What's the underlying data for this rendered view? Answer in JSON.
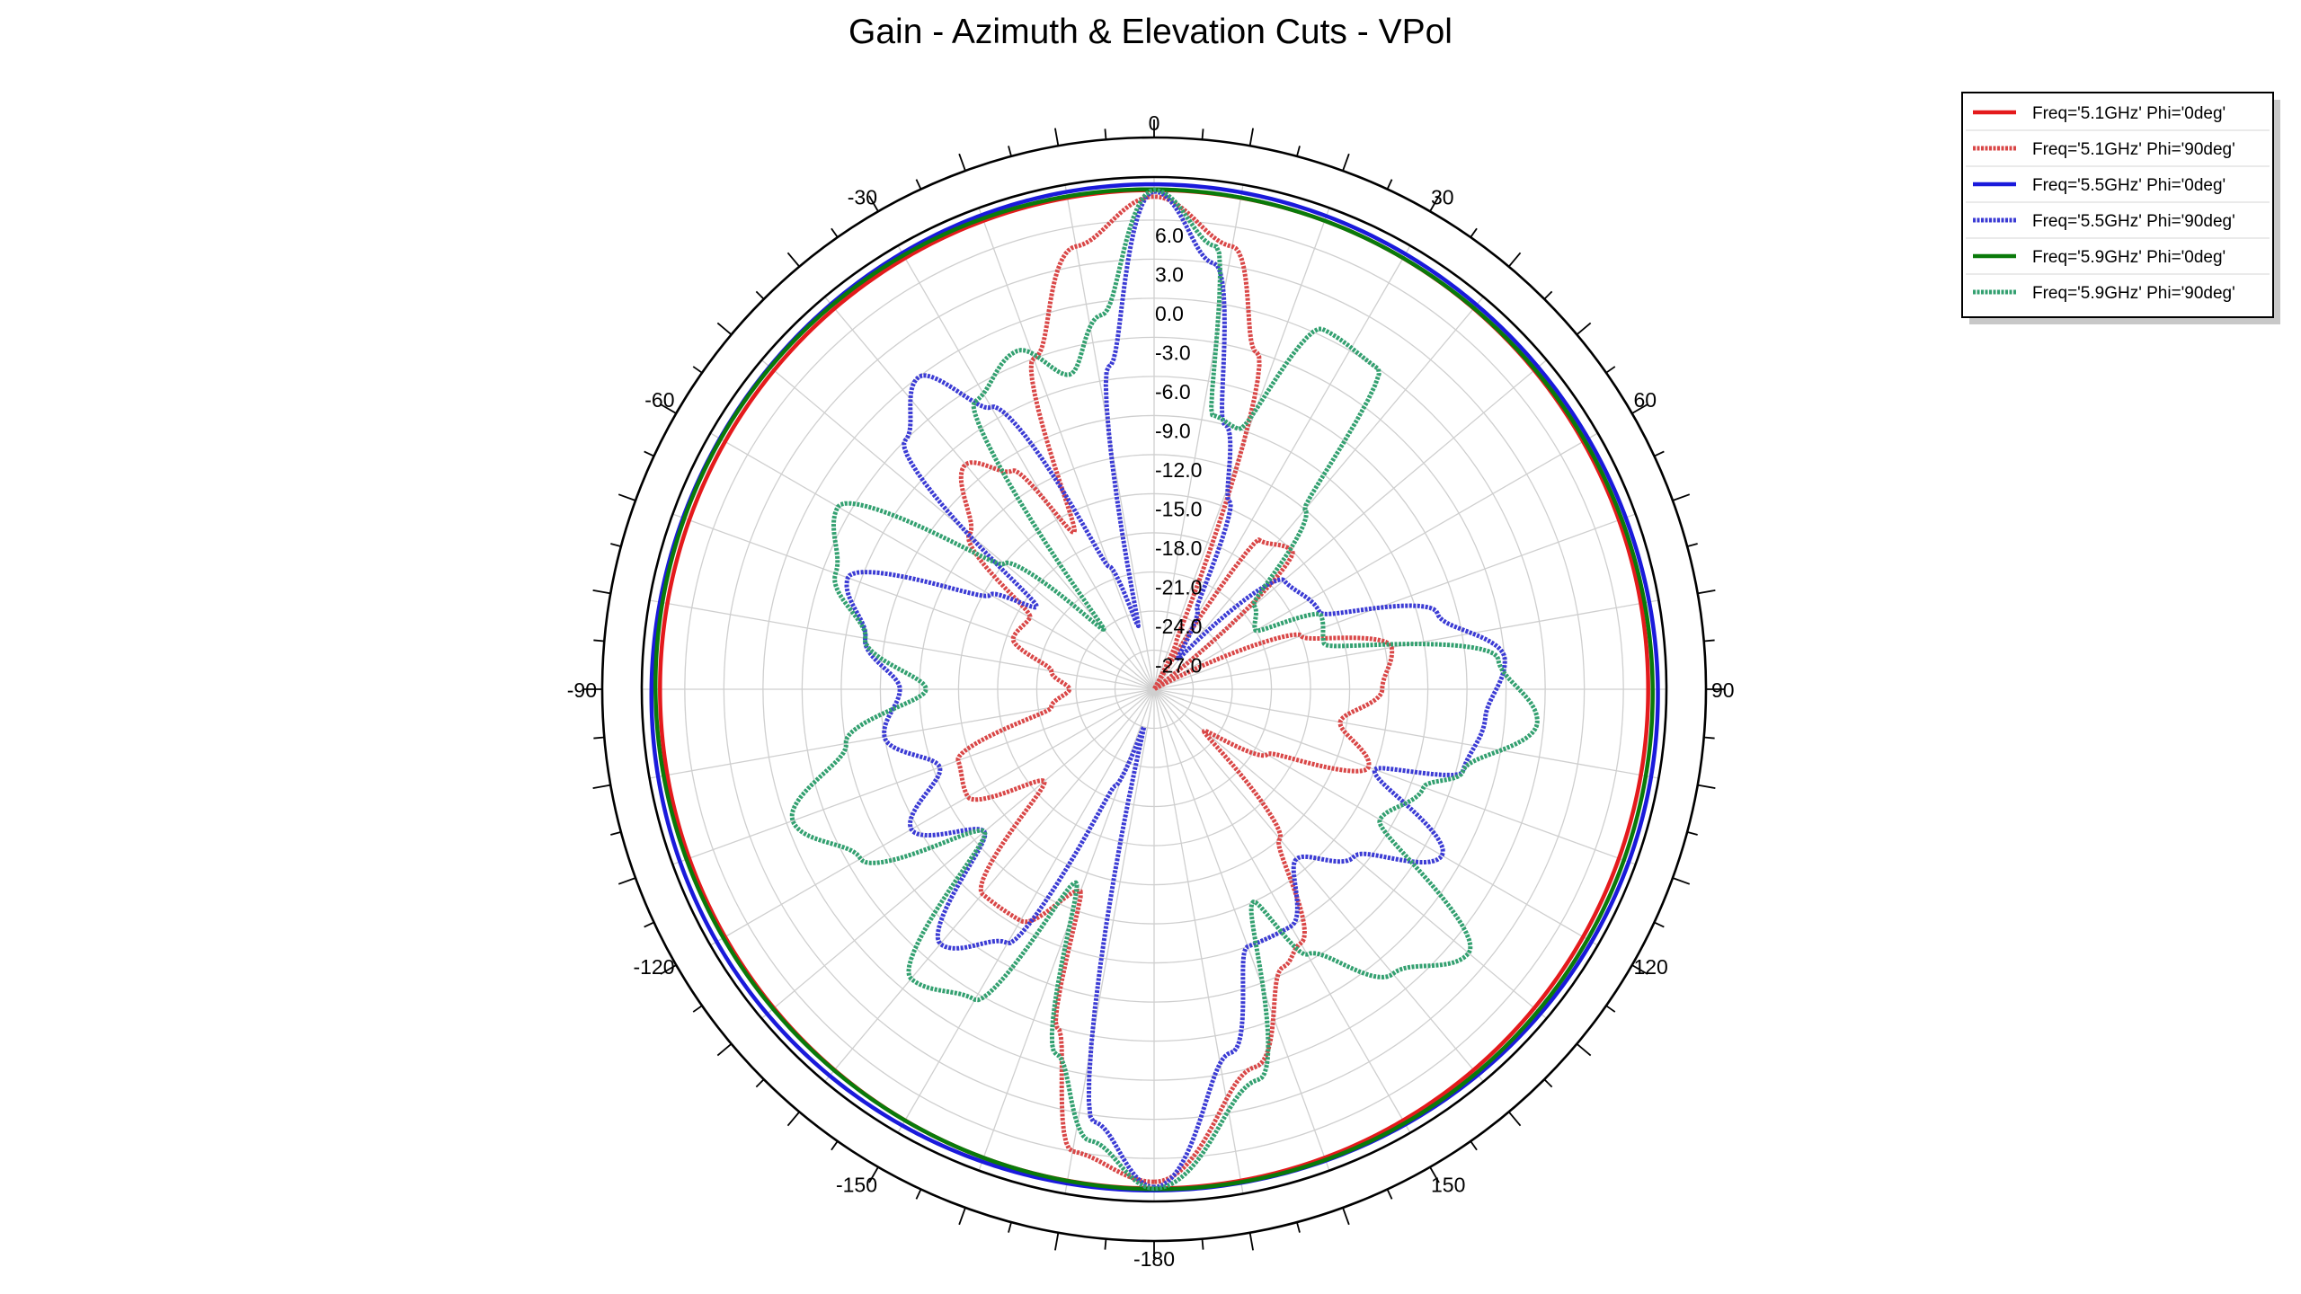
{
  "chart_data": {
    "type": "polar-line",
    "title": "Gain - Azimuth & Elevation Cuts - VPol",
    "angle_ticks": [
      {
        "angle": 0,
        "label": "0"
      },
      {
        "angle": 30,
        "label": "30"
      },
      {
        "angle": 60,
        "label": "60"
      },
      {
        "angle": 90,
        "label": "90"
      },
      {
        "angle": 120,
        "label": "120"
      },
      {
        "angle": 150,
        "label": "150"
      },
      {
        "angle": 180,
        "label": "-180"
      },
      {
        "angle": -150,
        "label": "-150"
      },
      {
        "angle": -120,
        "label": "-120"
      },
      {
        "angle": -90,
        "label": "-90"
      },
      {
        "angle": -60,
        "label": "-60"
      },
      {
        "angle": -30,
        "label": "-30"
      }
    ],
    "radial_ticks": [
      {
        "value": 6,
        "label": "6.0"
      },
      {
        "value": 3,
        "label": "3.0"
      },
      {
        "value": 0,
        "label": "0.0"
      },
      {
        "value": -3,
        "label": "-3.0"
      },
      {
        "value": -6,
        "label": "-6.0"
      },
      {
        "value": -9,
        "label": "-9.0"
      },
      {
        "value": -12,
        "label": "-12.0"
      },
      {
        "value": -15,
        "label": "-15.0"
      },
      {
        "value": -18,
        "label": "-18.0"
      },
      {
        "value": -21,
        "label": "-21.0"
      },
      {
        "value": -24,
        "label": "-24.0"
      },
      {
        "value": -27,
        "label": "-27.0"
      }
    ],
    "r_range": [
      -30,
      9.3
    ],
    "grid": true,
    "legend_position": "top-right",
    "series": [
      {
        "name": "Freq='5.1GHz' Phi='0deg'",
        "color": "#e41a1c",
        "style": "solid",
        "gain_const": 8.1,
        "ripple": [
          [
            0.2,
            2,
            0
          ]
        ]
      },
      {
        "name": "Freq='5.1GHz' Phi='90deg'",
        "color": "#d94747",
        "style": "dotted",
        "nulls": [
          -180,
          -130,
          -100,
          -60,
          0,
          30,
          55,
          90,
          110,
          140
        ],
        "points": [
          [
            -180,
            7.8
          ],
          [
            -170,
            6.0
          ],
          [
            -164,
            -3
          ],
          [
            -160,
            -13.5
          ],
          [
            -150,
            -9.5
          ],
          [
            -140,
            -9.5
          ],
          [
            -130,
            -19
          ],
          [
            -120,
            -13.5
          ],
          [
            -110,
            -14
          ],
          [
            -100,
            -22
          ],
          [
            -90,
            -23.5
          ],
          [
            -80,
            -22
          ],
          [
            -70,
            -18.5
          ],
          [
            -60,
            -19
          ],
          [
            -50,
            -11.5
          ],
          [
            -40,
            -7.5
          ],
          [
            -33,
            -10
          ],
          [
            -27,
            -16.5
          ],
          [
            -20,
            -3
          ],
          [
            -10,
            4.5
          ],
          [
            0,
            7.8
          ],
          [
            10,
            4.5
          ],
          [
            17,
            -3
          ],
          [
            25,
            -26
          ],
          [
            30,
            -30
          ],
          [
            35,
            -16
          ],
          [
            45,
            -15
          ],
          [
            55,
            -30
          ],
          [
            60,
            -30
          ],
          [
            70,
            -18
          ],
          [
            80,
            -11.5
          ],
          [
            90,
            -12.5
          ],
          [
            100,
            -15.5
          ],
          [
            110,
            -12.5
          ],
          [
            120,
            -20
          ],
          [
            130,
            -25
          ],
          [
            140,
            -15
          ],
          [
            150,
            -7.5
          ],
          [
            155,
            -6.5
          ],
          [
            165,
            0
          ],
          [
            180,
            7.8
          ]
        ]
      },
      {
        "name": "Freq='5.5GHz' Phi='0deg'",
        "color": "#1a1adb",
        "style": "solid",
        "gain_const": 8.6,
        "ripple": [
          [
            0.15,
            3,
            0.3
          ]
        ]
      },
      {
        "name": "Freq='5.5GHz' Phi='90deg'",
        "color": "#3b3bd4",
        "style": "dotted",
        "nulls": [
          -180,
          -165,
          -130,
          -95,
          -55,
          0,
          15,
          40,
          110,
          140
        ],
        "points": [
          [
            -180,
            8.2
          ],
          [
            -172,
            3.5
          ],
          [
            -165,
            -27
          ],
          [
            -158,
            -22
          ],
          [
            -150,
            -7.5
          ],
          [
            -140,
            -4.5
          ],
          [
            -130,
            -13
          ],
          [
            -120,
            -8.5
          ],
          [
            -110,
            -12.5
          ],
          [
            -100,
            -9
          ],
          [
            -90,
            -10.5
          ],
          [
            -80,
            -7.5
          ],
          [
            -70,
            -5
          ],
          [
            -60,
            -15.5
          ],
          [
            -55,
            -19
          ],
          [
            -45,
            -3
          ],
          [
            -37,
            0
          ],
          [
            -30,
            -5
          ],
          [
            -20,
            -20
          ],
          [
            -14,
            -25
          ],
          [
            -8,
            -5
          ],
          [
            0,
            8.2
          ],
          [
            8,
            3
          ],
          [
            15,
            -9
          ],
          [
            22,
            -14.5
          ],
          [
            28,
            -23
          ],
          [
            38,
            -27
          ],
          [
            50,
            -17
          ],
          [
            65,
            -16
          ],
          [
            75,
            -7.5
          ],
          [
            85,
            -3
          ],
          [
            95,
            -4.5
          ],
          [
            105,
            -5.5
          ],
          [
            110,
            -12
          ],
          [
            120,
            -4.5
          ],
          [
            130,
            -10
          ],
          [
            140,
            -13
          ],
          [
            150,
            -9
          ],
          [
            160,
            -9
          ],
          [
            168,
            -1.5
          ],
          [
            180,
            8.2
          ]
        ]
      },
      {
        "name": "Freq='5.9GHz' Phi='0deg'",
        "color": "#0a7a0a",
        "style": "solid",
        "gain_const": 8.3,
        "ripple": [
          [
            0.15,
            2,
            1.2
          ]
        ]
      },
      {
        "name": "Freq='5.9GHz' Phi='90deg'",
        "color": "#33a070",
        "style": "dotted",
        "nulls": [
          -180,
          -140,
          -110,
          -70,
          -40,
          0,
          15,
          50,
          100,
          140
        ],
        "points": [
          [
            -180,
            8.3
          ],
          [
            -172,
            5
          ],
          [
            -165,
            -1
          ],
          [
            -158,
            -14
          ],
          [
            -150,
            -2.5
          ],
          [
            -140,
            -1
          ],
          [
            -130,
            -13
          ],
          [
            -120,
            -4
          ],
          [
            -110,
            -0.5
          ],
          [
            -100,
            -6
          ],
          [
            -90,
            -12.5
          ],
          [
            -80,
            -7.5
          ],
          [
            -70,
            -4
          ],
          [
            -60,
            -2
          ],
          [
            -50,
            -15
          ],
          [
            -40,
            -24
          ],
          [
            -32,
            -4
          ],
          [
            -22,
            -2
          ],
          [
            -15,
            -5
          ],
          [
            -8,
            -1
          ],
          [
            0,
            8.3
          ],
          [
            8,
            4.3
          ],
          [
            12,
            -8.5
          ],
          [
            18,
            -9
          ],
          [
            25,
            0.5
          ],
          [
            35,
            0
          ],
          [
            40,
            -12
          ],
          [
            50,
            -20
          ],
          [
            60,
            -21
          ],
          [
            66,
            -16
          ],
          [
            75,
            -16.5
          ],
          [
            85,
            -3.5
          ],
          [
            95,
            -0.5
          ],
          [
            105,
            -5.5
          ],
          [
            110,
            -8
          ],
          [
            120,
            -10
          ],
          [
            130,
            1.5
          ],
          [
            140,
            -1.5
          ],
          [
            150,
            -6.5
          ],
          [
            155,
            -12
          ],
          [
            165,
            1
          ],
          [
            180,
            8.3
          ]
        ]
      }
    ]
  }
}
